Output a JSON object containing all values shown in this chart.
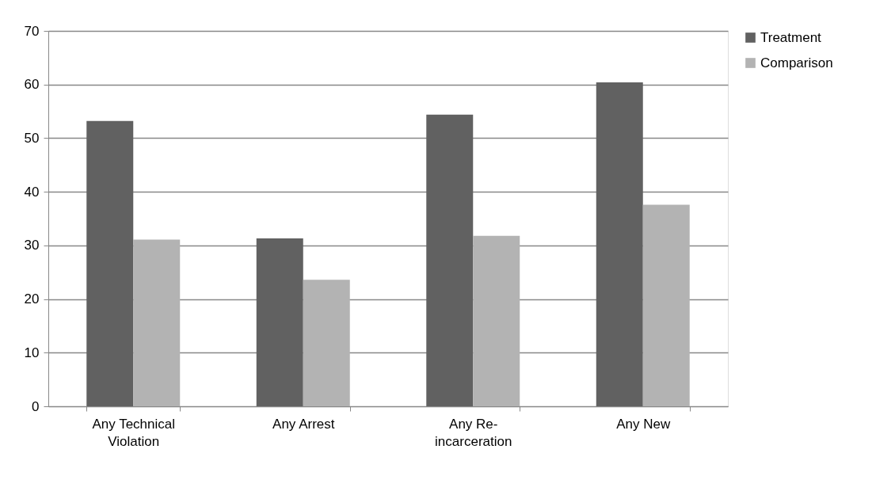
{
  "chart_data": {
    "type": "bar",
    "categories": [
      "Any Technical Violation",
      "Any Arrest",
      "Any Re-incarceration",
      "Any New"
    ],
    "series": [
      {
        "name": "Treatment",
        "color": "#616161",
        "values": [
          53.2,
          31.3,
          54.4,
          60.4
        ]
      },
      {
        "name": "Comparison",
        "color": "#b3b3b3",
        "values": [
          31.1,
          23.6,
          31.8,
          37.6
        ]
      }
    ],
    "ylim": [
      0,
      70
    ],
    "yticks": [
      0,
      10,
      20,
      30,
      40,
      50,
      60,
      70
    ],
    "grid": "y",
    "legend": "right"
  }
}
